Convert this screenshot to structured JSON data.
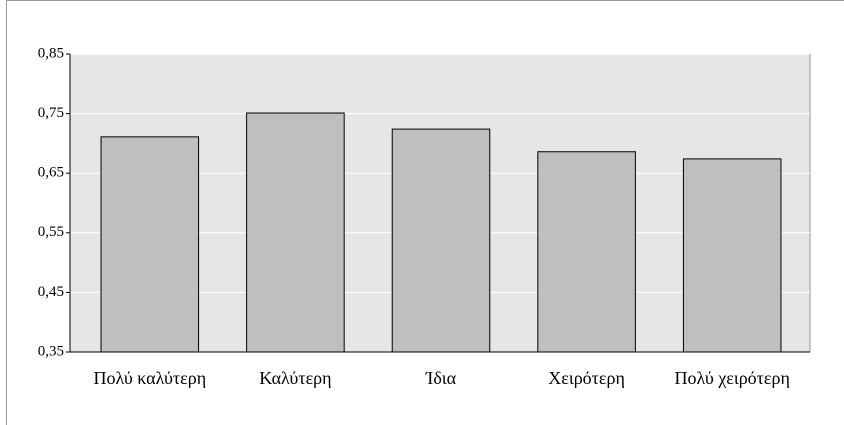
{
  "chart_data": {
    "type": "bar",
    "categories": [
      "Πολύ καλύτερη",
      "Καλύτερη",
      "Ίδια",
      "Χειρότερη",
      "Πολύ χειρότερη"
    ],
    "values": [
      0.711,
      0.751,
      0.724,
      0.686,
      0.674
    ],
    "color": "#bfbfbf",
    "ylim": [
      0.35,
      0.85
    ],
    "yticks": [
      {
        "value": 0.35,
        "label": "0,35"
      },
      {
        "value": 0.45,
        "label": "0,45"
      },
      {
        "value": 0.55,
        "label": "0,55"
      },
      {
        "value": 0.65,
        "label": "0,65"
      },
      {
        "value": 0.75,
        "label": "0,75"
      },
      {
        "value": 0.85,
        "label": "0,85"
      }
    ],
    "grid": true
  }
}
